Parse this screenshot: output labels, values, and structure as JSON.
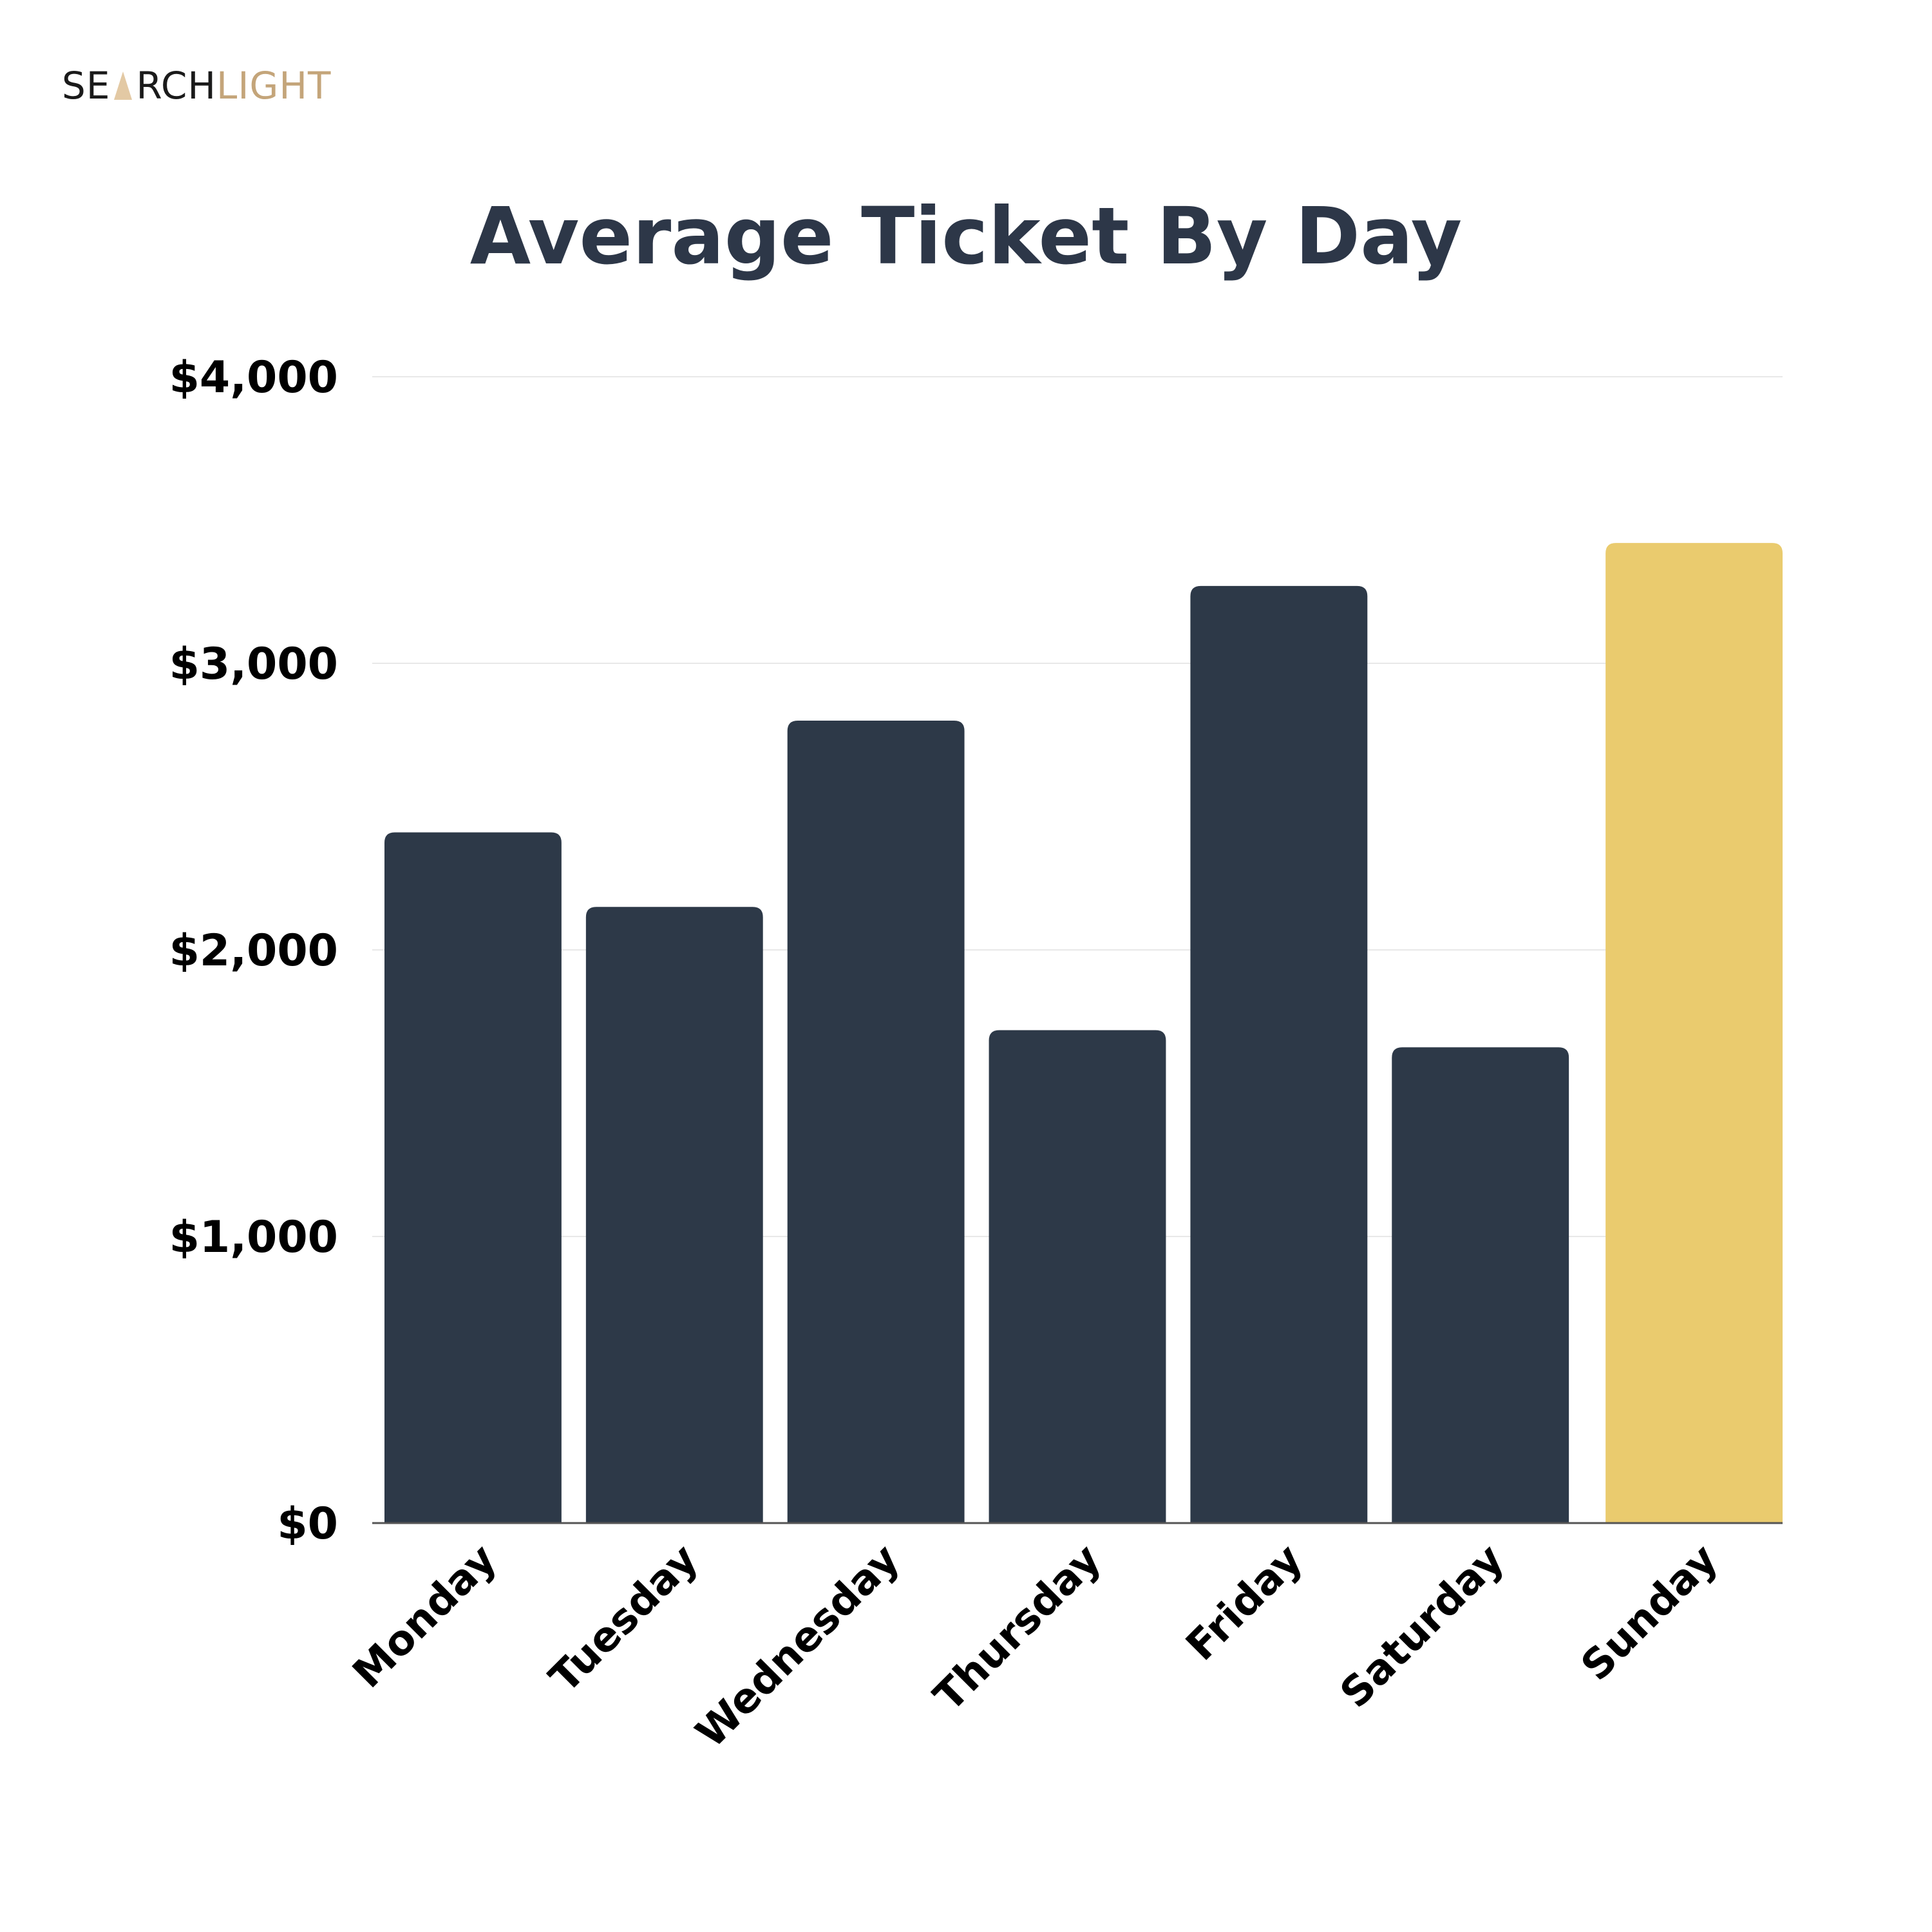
{
  "brand": {
    "logo_part1": "SE",
    "logo_part2": "RCH",
    "logo_part3": "LIGHT",
    "colors": {
      "dark": "#1a1a1a",
      "gold": "#c4a57a"
    }
  },
  "chart_data": {
    "type": "bar",
    "title": "Average Ticket By Day",
    "xlabel": "",
    "ylabel": "",
    "categories": [
      "Monday",
      "Tuesday",
      "Wednesday",
      "Thursday",
      "Friday",
      "Saturday",
      "Sunday"
    ],
    "values": [
      2410,
      2150,
      2800,
      1720,
      3270,
      1660,
      3420
    ],
    "ylim": [
      0,
      4000
    ],
    "yticks": [
      0,
      1000,
      2000,
      3000,
      4000
    ],
    "ytick_labels": [
      "$0",
      "$1,000",
      "$2,000",
      "$3,000",
      "$4,000"
    ],
    "grid": true,
    "bar_color": "#2d3948",
    "highlight_color": "#eacb6e",
    "highlight_category": "Sunday"
  }
}
